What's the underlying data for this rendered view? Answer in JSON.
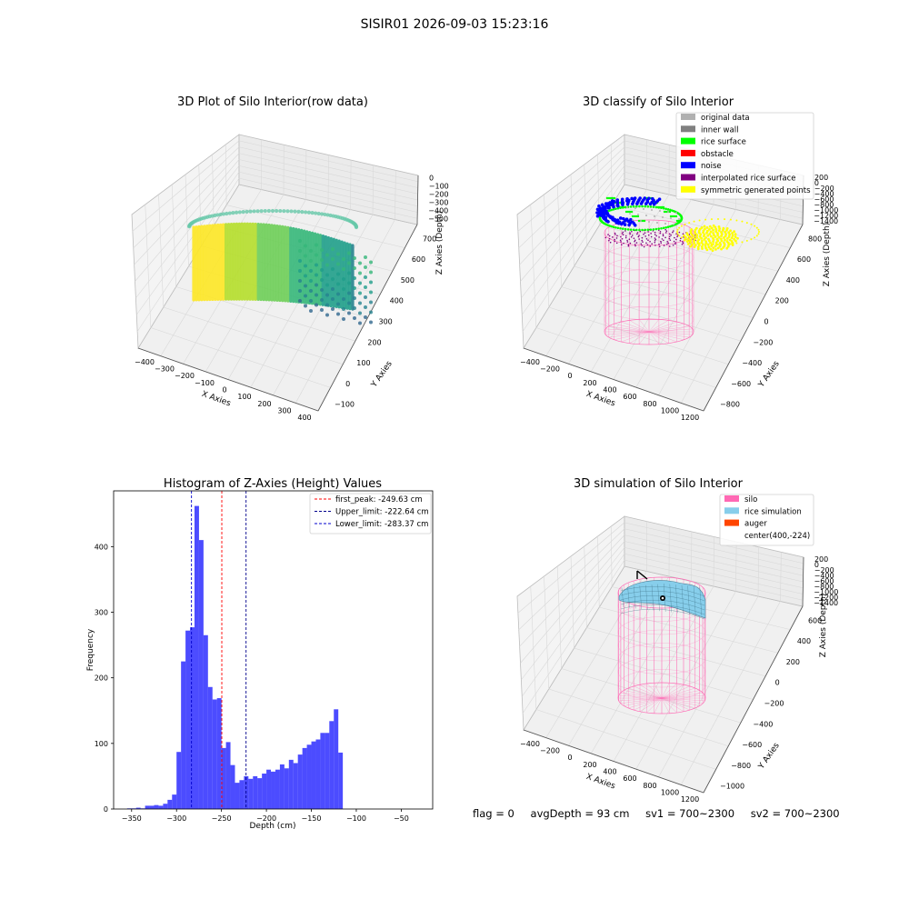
{
  "suptitle": "SISIR01 2026-09-03 15:23:16",
  "panels": {
    "raw": {
      "title": "3D Plot of Silo Interior(row data)",
      "xlabel": "X Axies",
      "ylabel": "Y Axies",
      "zlabel": "Z Axies (Depth)",
      "xticks": [
        "−400",
        "−300",
        "−200",
        "−100",
        "0",
        "100",
        "200",
        "300",
        "400"
      ],
      "yticks": [
        "−100",
        "0",
        "100",
        "200",
        "300",
        "400",
        "500",
        "600",
        "700"
      ],
      "zticks": [
        "0",
        "−100",
        "−200",
        "−300",
        "−400",
        "−500"
      ]
    },
    "classify": {
      "title": "3D classify of Silo Interior",
      "xlabel": "X Axies",
      "ylabel": "Y Axies",
      "zlabel": "Z Axies (Depth)",
      "xticks": [
        "−400",
        "−200",
        "0",
        "200",
        "400",
        "600",
        "800",
        "1000",
        "1200"
      ],
      "yticks": [
        "−800",
        "−600",
        "−400",
        "−200",
        "0",
        "200",
        "400",
        "600",
        "800"
      ],
      "zticks": [
        "200",
        "0",
        "−200",
        "−400",
        "−600",
        "−800",
        "−1000",
        "−1200",
        "−1400"
      ],
      "legend": [
        {
          "label": "original data",
          "color": "#b0b0b0"
        },
        {
          "label": "inner wall",
          "color": "#808080"
        },
        {
          "label": "rice surface",
          "color": "#00ff00"
        },
        {
          "label": "obstacle",
          "color": "#ff0000"
        },
        {
          "label": "noise",
          "color": "#0000ff"
        },
        {
          "label": "interpolated rice surface",
          "color": "#800080"
        },
        {
          "label": "symmetric generated points",
          "color": "#ffff00"
        }
      ]
    },
    "simulation": {
      "title": "3D simulation of Silo Interior",
      "xlabel": "X Axies",
      "ylabel": "Y Axies",
      "zlabel": "Z Axies (Depth)",
      "xticks": [
        "−400",
        "−200",
        "0",
        "200",
        "400",
        "600",
        "800",
        "1000",
        "1200"
      ],
      "yticks": [
        "−1000",
        "−800",
        "−600",
        "−400",
        "−200",
        "0",
        "200",
        "400",
        "600"
      ],
      "zticks": [
        "200",
        "0",
        "−200",
        "−400",
        "−600",
        "−800",
        "−1000",
        "−1200",
        "−1400"
      ],
      "legend": [
        {
          "label": "silo",
          "color": "#ff69b4"
        },
        {
          "label": "rice simulation",
          "color": "#87ceeb"
        },
        {
          "label": "auger",
          "color": "#ff4500"
        },
        {
          "label": "center(400,-224)",
          "color": ""
        }
      ]
    }
  },
  "status": {
    "flag": "flag = 0",
    "avg_depth": "avgDepth = 93 cm",
    "sv1": "sv1 = 700~2300",
    "sv2": "sv2 = 700~2300"
  },
  "chart_data": [
    {
      "type": "histogram",
      "title": "Histogram of Z-Axies (Height) Values",
      "xlabel": "Depth (cm)",
      "ylabel": "Frequency",
      "xlim": [
        -370,
        -15
      ],
      "ylim": [
        0,
        485
      ],
      "xticks": [
        -350,
        -300,
        -250,
        -200,
        -150,
        -100,
        -50
      ],
      "xtick_labels": [
        "−350",
        "−300",
        "−250",
        "−200",
        "−150",
        "−100",
        "−50"
      ],
      "yticks": [
        0,
        100,
        200,
        300,
        400
      ],
      "bar_color": "#0000ff",
      "bin_start": -355,
      "bin_width": 5,
      "values": [
        1,
        1,
        2,
        1,
        5,
        5,
        6,
        5,
        8,
        14,
        22,
        87,
        225,
        272,
        277,
        462,
        410,
        265,
        186,
        167,
        169,
        93,
        102,
        67,
        40,
        44,
        50,
        46,
        50,
        47,
        54,
        60,
        57,
        60,
        68,
        62,
        75,
        70,
        83,
        93,
        98,
        103,
        106,
        116,
        116,
        134,
        152,
        86
      ],
      "vlines": [
        {
          "x": -249.63,
          "color": "#ff0000",
          "label": "first_peak: -249.63 cm"
        },
        {
          "x": -222.64,
          "color": "#00008b",
          "label": "Upper_limit: -222.64 cm"
        },
        {
          "x": -283.37,
          "color": "#0000cd",
          "label": "Lower_limit: -283.37 cm"
        }
      ],
      "legend_position": "top-right"
    }
  ]
}
